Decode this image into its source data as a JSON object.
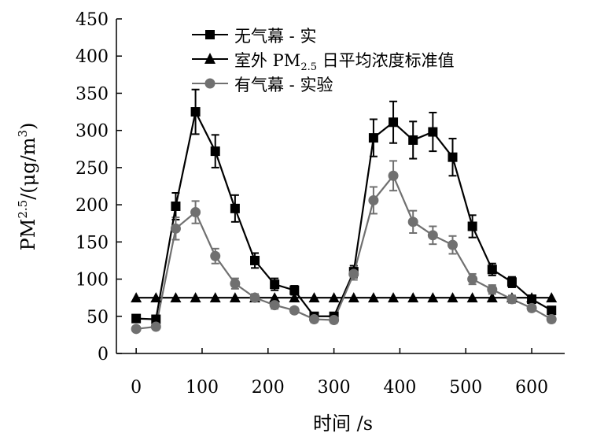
{
  "chart_data": {
    "type": "line",
    "xlabel": "时间 /s",
    "ylabel": "PM²·⁵/(μg/m³)",
    "xlim": [
      -30,
      650
    ],
    "ylim": [
      0,
      450
    ],
    "x_ticks": [
      0,
      100,
      200,
      300,
      400,
      500,
      600
    ],
    "y_ticks": [
      0,
      50,
      100,
      150,
      200,
      250,
      300,
      350,
      400,
      450
    ],
    "grid": false,
    "legend_position": "top-left",
    "series": [
      {
        "name": "无气幕 - 实",
        "marker": "square",
        "color": "#000000",
        "x": [
          0,
          30,
          60,
          90,
          120,
          150,
          180,
          210,
          240,
          270,
          300,
          330,
          360,
          390,
          420,
          450,
          480,
          510,
          540,
          570,
          600,
          630
        ],
        "values": [
          47,
          46,
          198,
          325,
          272,
          195,
          125,
          93,
          85,
          50,
          50,
          110,
          290,
          311,
          287,
          298,
          264,
          171,
          113,
          96,
          73,
          58
        ],
        "errors": [
          5,
          5,
          18,
          30,
          22,
          18,
          10,
          8,
          6,
          5,
          5,
          8,
          25,
          28,
          25,
          26,
          25,
          15,
          8,
          7,
          5,
          5
        ]
      },
      {
        "name": "室外 PM2.5 日平均浓度标准值",
        "marker": "triangle",
        "color": "#000000",
        "x": [
          0,
          30,
          60,
          90,
          120,
          150,
          180,
          210,
          240,
          270,
          300,
          330,
          360,
          390,
          420,
          450,
          480,
          510,
          540,
          570,
          600,
          630
        ],
        "values": [
          75,
          75,
          75,
          75,
          75,
          75,
          75,
          75,
          75,
          75,
          75,
          75,
          75,
          75,
          75,
          75,
          75,
          75,
          75,
          75,
          75,
          75
        ]
      },
      {
        "name": "有气幕 - 实验",
        "marker": "circle",
        "color": "#707070",
        "x": [
          0,
          30,
          60,
          90,
          120,
          150,
          180,
          210,
          240,
          270,
          300,
          330,
          360,
          390,
          420,
          450,
          480,
          510,
          540,
          570,
          600,
          630
        ],
        "values": [
          33,
          36,
          168,
          190,
          131,
          94,
          75,
          65,
          58,
          46,
          45,
          107,
          206,
          239,
          177,
          159,
          146,
          100,
          86,
          73,
          61,
          46
        ],
        "errors": [
          3,
          3,
          15,
          15,
          10,
          7,
          5,
          5,
          4,
          4,
          4,
          8,
          18,
          20,
          15,
          12,
          12,
          7,
          6,
          5,
          4,
          4
        ]
      }
    ]
  },
  "legend_html": {
    "s1": "无气幕 - 实",
    "s2_pre": "室外 PM",
    "s2_sub": "2.5",
    "s2_post": " 日平均浓度标准值",
    "s3": "有气幕 - 实验"
  },
  "ylabel_parts": {
    "pre": "PM",
    "sup1": "2.5",
    "mid": "/(μg/m",
    "sup2": "3",
    "post": ")"
  }
}
